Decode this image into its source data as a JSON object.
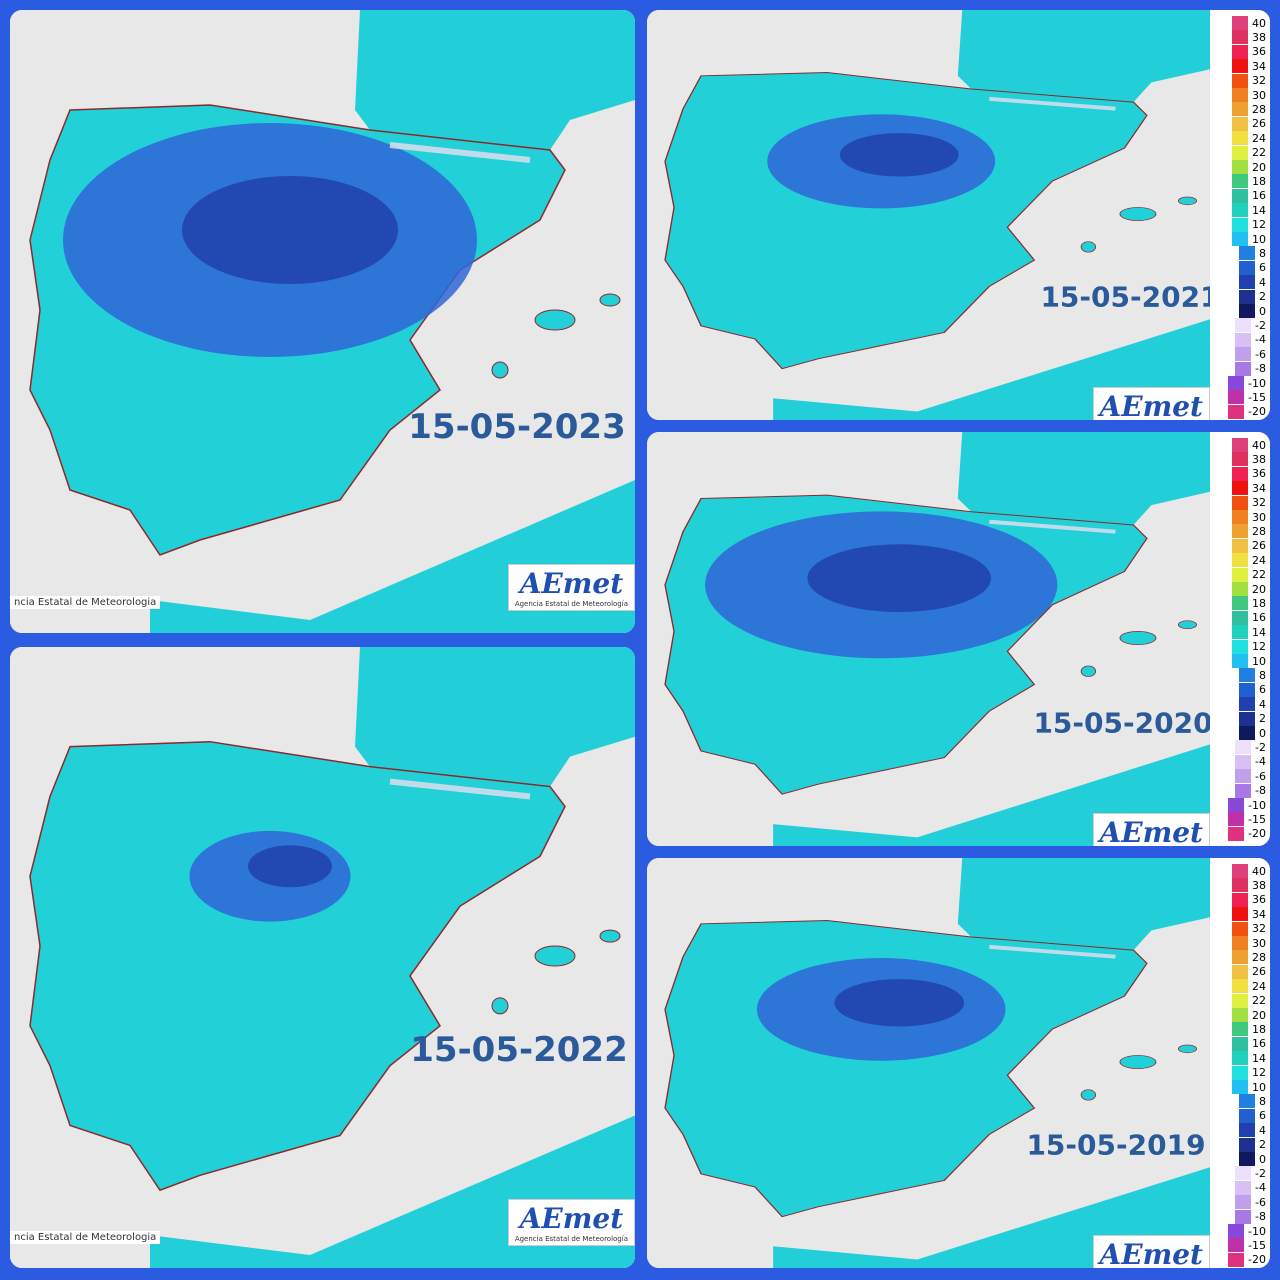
{
  "panels": [
    {
      "date": "15-05-2023",
      "footer": "ncia Estatal de Meteorologia",
      "logo": "AEmet",
      "logo_sub": "Agencia Estatal de Meteorología",
      "cold": 0.9
    },
    {
      "date": "15-05-2022",
      "footer": "ncia Estatal de Meteorologia",
      "logo": "AEmet",
      "logo_sub": "Agencia Estatal de Meteorología",
      "cold": 0.35
    },
    {
      "date": "15-05-2021",
      "logo": "AEmet",
      "cold": 0.55
    },
    {
      "date": "15-05-2020",
      "logo": "AEmet",
      "cold": 0.85
    },
    {
      "date": "15-05-2019",
      "logo": "AEmet",
      "cold": 0.6
    }
  ],
  "legend": {
    "labels": [
      40,
      38,
      36,
      34,
      32,
      30,
      28,
      26,
      24,
      22,
      20,
      18,
      16,
      14,
      12,
      10,
      8,
      6,
      4,
      2,
      0,
      -2,
      -4,
      -6,
      -8,
      -10,
      -15,
      -20
    ],
    "colors": [
      "#e0407a",
      "#e03060",
      "#f02050",
      "#f01010",
      "#f05010",
      "#f08020",
      "#f0a030",
      "#f0c040",
      "#f0e040",
      "#e0f040",
      "#a0e040",
      "#40c880",
      "#30c0a0",
      "#20d0c0",
      "#20e0e0",
      "#20c0f0",
      "#2080e0",
      "#2060d0",
      "#2040b0",
      "#203090",
      "#101860",
      "#ece0fa",
      "#d8c0f4",
      "#c0a0ec",
      "#a878e4",
      "#8848d8",
      "#c030a8",
      "#e03080"
    ]
  }
}
